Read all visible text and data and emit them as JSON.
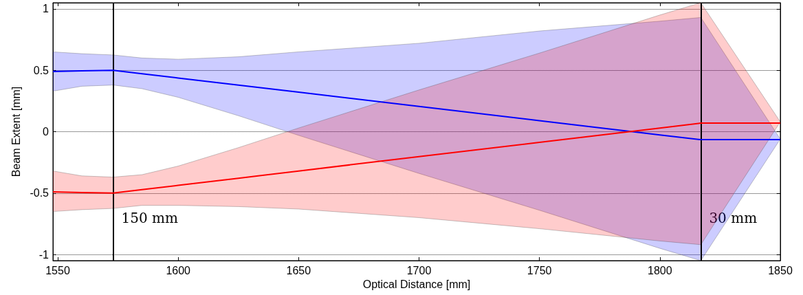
{
  "chart_data": {
    "type": "line",
    "xlabel": "Optical Distance [mm]",
    "ylabel": "Beam Extent [mm]",
    "x": [
      1548,
      1560,
      1573,
      1585,
      1600,
      1625,
      1650,
      1700,
      1750,
      1800,
      1817,
      1850
    ],
    "series": [
      {
        "color": "#0000ff",
        "values": [
          0.49,
          0.495,
          0.5,
          0.472,
          0.437,
          0.38,
          0.322,
          0.206,
          0.09,
          -0.026,
          -0.065,
          -0.065
        ],
        "lower": [
          0.33,
          0.37,
          0.38,
          0.35,
          0.28,
          0.13,
          -0.03,
          -0.34,
          -0.64,
          -0.95,
          -1.05,
          -0.06
        ],
        "upper": [
          0.65,
          0.635,
          0.625,
          0.6,
          0.59,
          0.61,
          0.65,
          0.72,
          0.82,
          0.9,
          0.93,
          -0.06
        ]
      },
      {
        "color": "#ff0000",
        "values": [
          -0.49,
          -0.495,
          -0.5,
          -0.472,
          -0.437,
          -0.379,
          -0.32,
          -0.203,
          -0.087,
          0.03,
          0.07,
          0.07
        ],
        "lower": [
          -0.65,
          -0.635,
          -0.625,
          -0.6,
          -0.6,
          -0.61,
          -0.63,
          -0.7,
          -0.79,
          -0.89,
          -0.92,
          0.08
        ],
        "upper": [
          -0.32,
          -0.36,
          -0.37,
          -0.35,
          -0.28,
          -0.13,
          0.03,
          0.34,
          0.64,
          0.95,
          1.05,
          0.08
        ]
      }
    ],
    "xlim": [
      1548,
      1850
    ],
    "xticks": [
      1550,
      1600,
      1650,
      1700,
      1750,
      1800,
      1850
    ],
    "ylim": [
      -1.05,
      1.05
    ],
    "yticks": [
      -1,
      -0.5,
      0,
      0.5,
      1
    ],
    "grid": "y",
    "marker": "none",
    "line_style": "solid",
    "ref_lines": [
      {
        "axis": "x",
        "value": 1573,
        "label": "150 mm",
        "color": "#000000"
      },
      {
        "axis": "x",
        "value": 1817,
        "label": "30 mm",
        "color": "#000000"
      }
    ]
  }
}
